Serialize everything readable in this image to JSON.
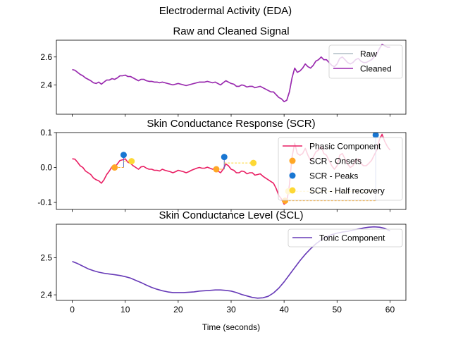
{
  "figure": {
    "title": "Electrodermal Activity (EDA)"
  },
  "chart_data": [
    {
      "type": "line",
      "title": "Raw and Cleaned Signal",
      "xlabel": "",
      "ylabel": "",
      "xlim": [
        -3.0,
        63.0
      ],
      "ylim": [
        2.19,
        2.72
      ],
      "yticks": [
        2.4,
        2.6
      ],
      "ytick_labels": [
        "2.4",
        "2.6"
      ],
      "x": [
        0,
        0.5,
        1,
        1.5,
        2,
        2.5,
        3,
        3.5,
        4,
        4.5,
        5,
        5.5,
        6,
        6.5,
        7,
        7.5,
        8,
        8.5,
        9,
        9.5,
        10,
        10.5,
        11,
        11.5,
        12,
        12.5,
        13,
        13.5,
        14,
        14.5,
        15,
        15.5,
        16,
        16.5,
        17,
        17.5,
        18,
        18.5,
        19,
        19.5,
        20,
        20.5,
        21,
        21.5,
        22,
        22.5,
        23,
        23.5,
        24,
        24.5,
        25,
        25.5,
        26,
        26.5,
        27,
        27.5,
        28,
        28.5,
        29,
        29.5,
        30,
        30.5,
        31,
        31.5,
        32,
        32.5,
        33,
        33.5,
        34,
        34.5,
        35,
        35.5,
        36,
        36.5,
        37,
        37.5,
        38,
        38.5,
        39,
        39.5,
        40,
        40.5,
        41,
        41.5,
        42,
        42.5,
        43,
        43.5,
        44,
        44.5,
        45,
        45.5,
        46,
        46.5,
        47,
        47.5,
        48,
        48.5,
        49,
        49.5,
        50,
        50.5,
        51,
        51.5,
        52,
        52.5,
        53,
        53.5,
        54,
        54.5,
        55,
        55.5,
        56,
        56.5,
        57,
        57.5,
        58,
        58.5,
        59,
        59.5,
        60
      ],
      "series": [
        {
          "name": "Raw",
          "color": "#b0bec5",
          "values": [
            2.51,
            2.505,
            2.49,
            2.475,
            2.465,
            2.45,
            2.44,
            2.43,
            2.415,
            2.41,
            2.42,
            2.405,
            2.42,
            2.435,
            2.435,
            2.445,
            2.44,
            2.45,
            2.465,
            2.465,
            2.47,
            2.46,
            2.46,
            2.45,
            2.44,
            2.43,
            2.44,
            2.44,
            2.43,
            2.425,
            2.425,
            2.42,
            2.42,
            2.415,
            2.42,
            2.415,
            2.41,
            2.405,
            2.4,
            2.405,
            2.41,
            2.405,
            2.4,
            2.395,
            2.4,
            2.405,
            2.41,
            2.415,
            2.42,
            2.42,
            2.42,
            2.425,
            2.42,
            2.415,
            2.42,
            2.41,
            2.4,
            2.415,
            2.43,
            2.42,
            2.41,
            2.405,
            2.39,
            2.39,
            2.4,
            2.395,
            2.385,
            2.39,
            2.39,
            2.38,
            2.385,
            2.39,
            2.38,
            2.37,
            2.36,
            2.35,
            2.35,
            2.33,
            2.31,
            2.3,
            2.28,
            2.29,
            2.35,
            2.45,
            2.52,
            2.49,
            2.5,
            2.52,
            2.55,
            2.53,
            2.52,
            2.54,
            2.57,
            2.58,
            2.6,
            2.58,
            2.58,
            2.56,
            2.54,
            2.53,
            2.55,
            2.59,
            2.6,
            2.58,
            2.56,
            2.55,
            2.56,
            2.58,
            2.59,
            2.57,
            2.56,
            2.56,
            2.57,
            2.58,
            2.6,
            2.62,
            2.66,
            2.69,
            2.68,
            2.67,
            2.67
          ]
        },
        {
          "name": "Cleaned",
          "color": "#9c27b0",
          "values": [
            2.51,
            2.505,
            2.49,
            2.475,
            2.465,
            2.45,
            2.44,
            2.43,
            2.415,
            2.41,
            2.42,
            2.405,
            2.42,
            2.435,
            2.435,
            2.445,
            2.44,
            2.45,
            2.465,
            2.465,
            2.47,
            2.46,
            2.46,
            2.45,
            2.44,
            2.43,
            2.44,
            2.44,
            2.43,
            2.425,
            2.425,
            2.42,
            2.42,
            2.415,
            2.42,
            2.415,
            2.41,
            2.405,
            2.4,
            2.405,
            2.41,
            2.405,
            2.4,
            2.395,
            2.4,
            2.405,
            2.41,
            2.415,
            2.42,
            2.42,
            2.42,
            2.425,
            2.42,
            2.415,
            2.42,
            2.41,
            2.4,
            2.415,
            2.43,
            2.42,
            2.41,
            2.405,
            2.39,
            2.39,
            2.4,
            2.395,
            2.385,
            2.39,
            2.39,
            2.38,
            2.385,
            2.39,
            2.38,
            2.37,
            2.36,
            2.35,
            2.35,
            2.33,
            2.31,
            2.3,
            2.28,
            2.29,
            2.35,
            2.45,
            2.52,
            2.49,
            2.5,
            2.52,
            2.55,
            2.53,
            2.52,
            2.54,
            2.57,
            2.58,
            2.6,
            2.58,
            2.58,
            2.56,
            2.54,
            2.53,
            2.55,
            2.59,
            2.6,
            2.58,
            2.56,
            2.55,
            2.56,
            2.58,
            2.59,
            2.57,
            2.56,
            2.56,
            2.57,
            2.58,
            2.6,
            2.62,
            2.66,
            2.69,
            2.68,
            2.67,
            2.67
          ]
        }
      ],
      "legend": {
        "position": "top-right"
      },
      "grid": false
    },
    {
      "type": "line",
      "title": "Skin Conductance Response (SCR)",
      "xlabel": "",
      "ylabel": "",
      "xlim": [
        -3.0,
        63.0
      ],
      "ylim": [
        -0.12,
        0.1
      ],
      "yticks": [
        -0.1,
        0.0,
        0.1
      ],
      "ytick_labels": [
        "-0.1",
        "0.0",
        "0.1"
      ],
      "x": [
        0,
        0.5,
        1,
        1.5,
        2,
        2.5,
        3,
        3.5,
        4,
        4.5,
        5,
        5.5,
        6,
        6.5,
        7,
        7.5,
        8,
        8.5,
        9,
        9.5,
        10,
        10.5,
        11,
        11.5,
        12,
        12.5,
        13,
        13.5,
        14,
        14.5,
        15,
        15.5,
        16,
        16.5,
        17,
        17.5,
        18,
        18.5,
        19,
        19.5,
        20,
        20.5,
        21,
        21.5,
        22,
        22.5,
        23,
        23.5,
        24,
        24.5,
        25,
        25.5,
        26,
        26.5,
        27,
        27.5,
        28,
        28.5,
        29,
        29.5,
        30,
        30.5,
        31,
        31.5,
        32,
        32.5,
        33,
        33.5,
        34,
        34.5,
        35,
        35.5,
        36,
        36.5,
        37,
        37.5,
        38,
        38.5,
        39,
        39.5,
        40,
        40.5,
        41,
        41.5,
        42,
        42.5,
        43,
        43.5,
        44,
        44.5,
        45,
        45.5,
        46,
        46.5,
        47,
        47.5,
        48,
        48.5,
        49,
        49.5,
        50,
        50.5,
        51,
        51.5,
        52,
        52.5,
        53,
        53.5,
        54,
        54.5,
        55,
        55.5,
        56,
        56.5,
        57,
        57.5,
        58,
        58.5,
        59,
        59.5,
        60
      ],
      "series": [
        {
          "name": "Phasic Component",
          "color": "#e91e63",
          "values": [
            0.025,
            0.024,
            0.015,
            0.005,
            0.0,
            -0.01,
            -0.015,
            -0.02,
            -0.03,
            -0.035,
            -0.038,
            -0.045,
            -0.035,
            -0.02,
            -0.01,
            0.002,
            0.0,
            0.01,
            0.02,
            0.022,
            0.025,
            0.015,
            0.012,
            0.005,
            0.0,
            -0.005,
            0.002,
            0.003,
            -0.002,
            -0.005,
            -0.005,
            -0.008,
            -0.008,
            -0.01,
            -0.005,
            -0.008,
            -0.01,
            -0.012,
            -0.015,
            -0.012,
            -0.008,
            -0.01,
            -0.012,
            -0.015,
            -0.012,
            -0.008,
            -0.005,
            -0.002,
            0.0,
            -0.002,
            -0.002,
            0.001,
            -0.002,
            -0.005,
            -0.002,
            -0.01,
            -0.015,
            -0.005,
            0.01,
            0.005,
            -0.005,
            -0.008,
            -0.015,
            -0.015,
            -0.01,
            -0.012,
            -0.018,
            -0.015,
            -0.015,
            -0.022,
            -0.02,
            -0.018,
            -0.025,
            -0.03,
            -0.035,
            -0.04,
            -0.045,
            -0.06,
            -0.08,
            -0.09,
            -0.105,
            -0.1,
            -0.05,
            0.03,
            0.07,
            0.04,
            0.035,
            0.04,
            0.055,
            0.035,
            0.02,
            0.03,
            0.045,
            0.05,
            0.06,
            0.04,
            0.035,
            0.02,
            0.005,
            -0.005,
            0.005,
            0.035,
            0.04,
            0.025,
            0.01,
            0.0,
            0.005,
            0.02,
            0.025,
            0.012,
            0.005,
            0.005,
            0.012,
            0.02,
            0.035,
            0.05,
            0.08,
            0.095,
            0.075,
            0.06,
            0.05
          ]
        }
      ],
      "scatter_series": [
        {
          "name": "SCR - Onsets",
          "color": "#ffa726",
          "x": [
            8,
            27.2,
            40.2
          ],
          "y": [
            0.0,
            -0.005,
            -0.095
          ]
        },
        {
          "name": "SCR - Peaks",
          "color": "#1976d2",
          "x": [
            9.7,
            28.7,
            57.3
          ],
          "y": [
            0.036,
            0.03,
            0.093
          ]
        },
        {
          "name": "SCR - Half recovery",
          "color": "#fdd835",
          "x": [
            11.2,
            34.2,
            40.8
          ],
          "y": [
            0.018,
            0.013,
            -0.068
          ]
        }
      ],
      "legend": {
        "position": "top-right"
      },
      "grid": false
    },
    {
      "type": "line",
      "title": "Skin Conductance Level (SCL)",
      "xlabel": "Time (seconds)",
      "ylabel": "",
      "xlim": [
        -3.0,
        63.0
      ],
      "ylim": [
        2.385,
        2.59
      ],
      "yticks": [
        2.4,
        2.5
      ],
      "ytick_labels": [
        "2.4",
        "2.5"
      ],
      "xticks": [
        0,
        10,
        20,
        30,
        40,
        50,
        60
      ],
      "xtick_labels": [
        "0",
        "10",
        "20",
        "30",
        "40",
        "50",
        "60"
      ],
      "x": [
        0,
        1,
        2,
        3,
        4,
        5,
        6,
        7,
        8,
        9,
        10,
        11,
        12,
        13,
        14,
        15,
        16,
        17,
        18,
        19,
        20,
        21,
        22,
        23,
        24,
        25,
        26,
        27,
        28,
        29,
        30,
        31,
        32,
        33,
        34,
        35,
        36,
        37,
        38,
        39,
        40,
        41,
        42,
        43,
        44,
        45,
        46,
        47,
        48,
        49,
        50,
        51,
        52,
        53,
        54,
        55,
        56,
        57,
        58,
        59,
        60
      ],
      "series": [
        {
          "name": "Tonic Component",
          "color": "#673ab7",
          "values": [
            2.49,
            2.484,
            2.477,
            2.47,
            2.465,
            2.461,
            2.458,
            2.456,
            2.454,
            2.452,
            2.449,
            2.445,
            2.439,
            2.433,
            2.426,
            2.42,
            2.415,
            2.411,
            2.408,
            2.406,
            2.406,
            2.406,
            2.407,
            2.408,
            2.41,
            2.411,
            2.412,
            2.413,
            2.413,
            2.412,
            2.41,
            2.406,
            2.401,
            2.397,
            2.393,
            2.391,
            2.392,
            2.396,
            2.405,
            2.418,
            2.435,
            2.454,
            2.473,
            2.492,
            2.509,
            2.524,
            2.537,
            2.548,
            2.556,
            2.562,
            2.566,
            2.569,
            2.571,
            2.574,
            2.577,
            2.58,
            2.582,
            2.583,
            2.582,
            2.579,
            2.572
          ]
        }
      ],
      "legend": {
        "position": "top-right"
      },
      "grid": false
    }
  ]
}
